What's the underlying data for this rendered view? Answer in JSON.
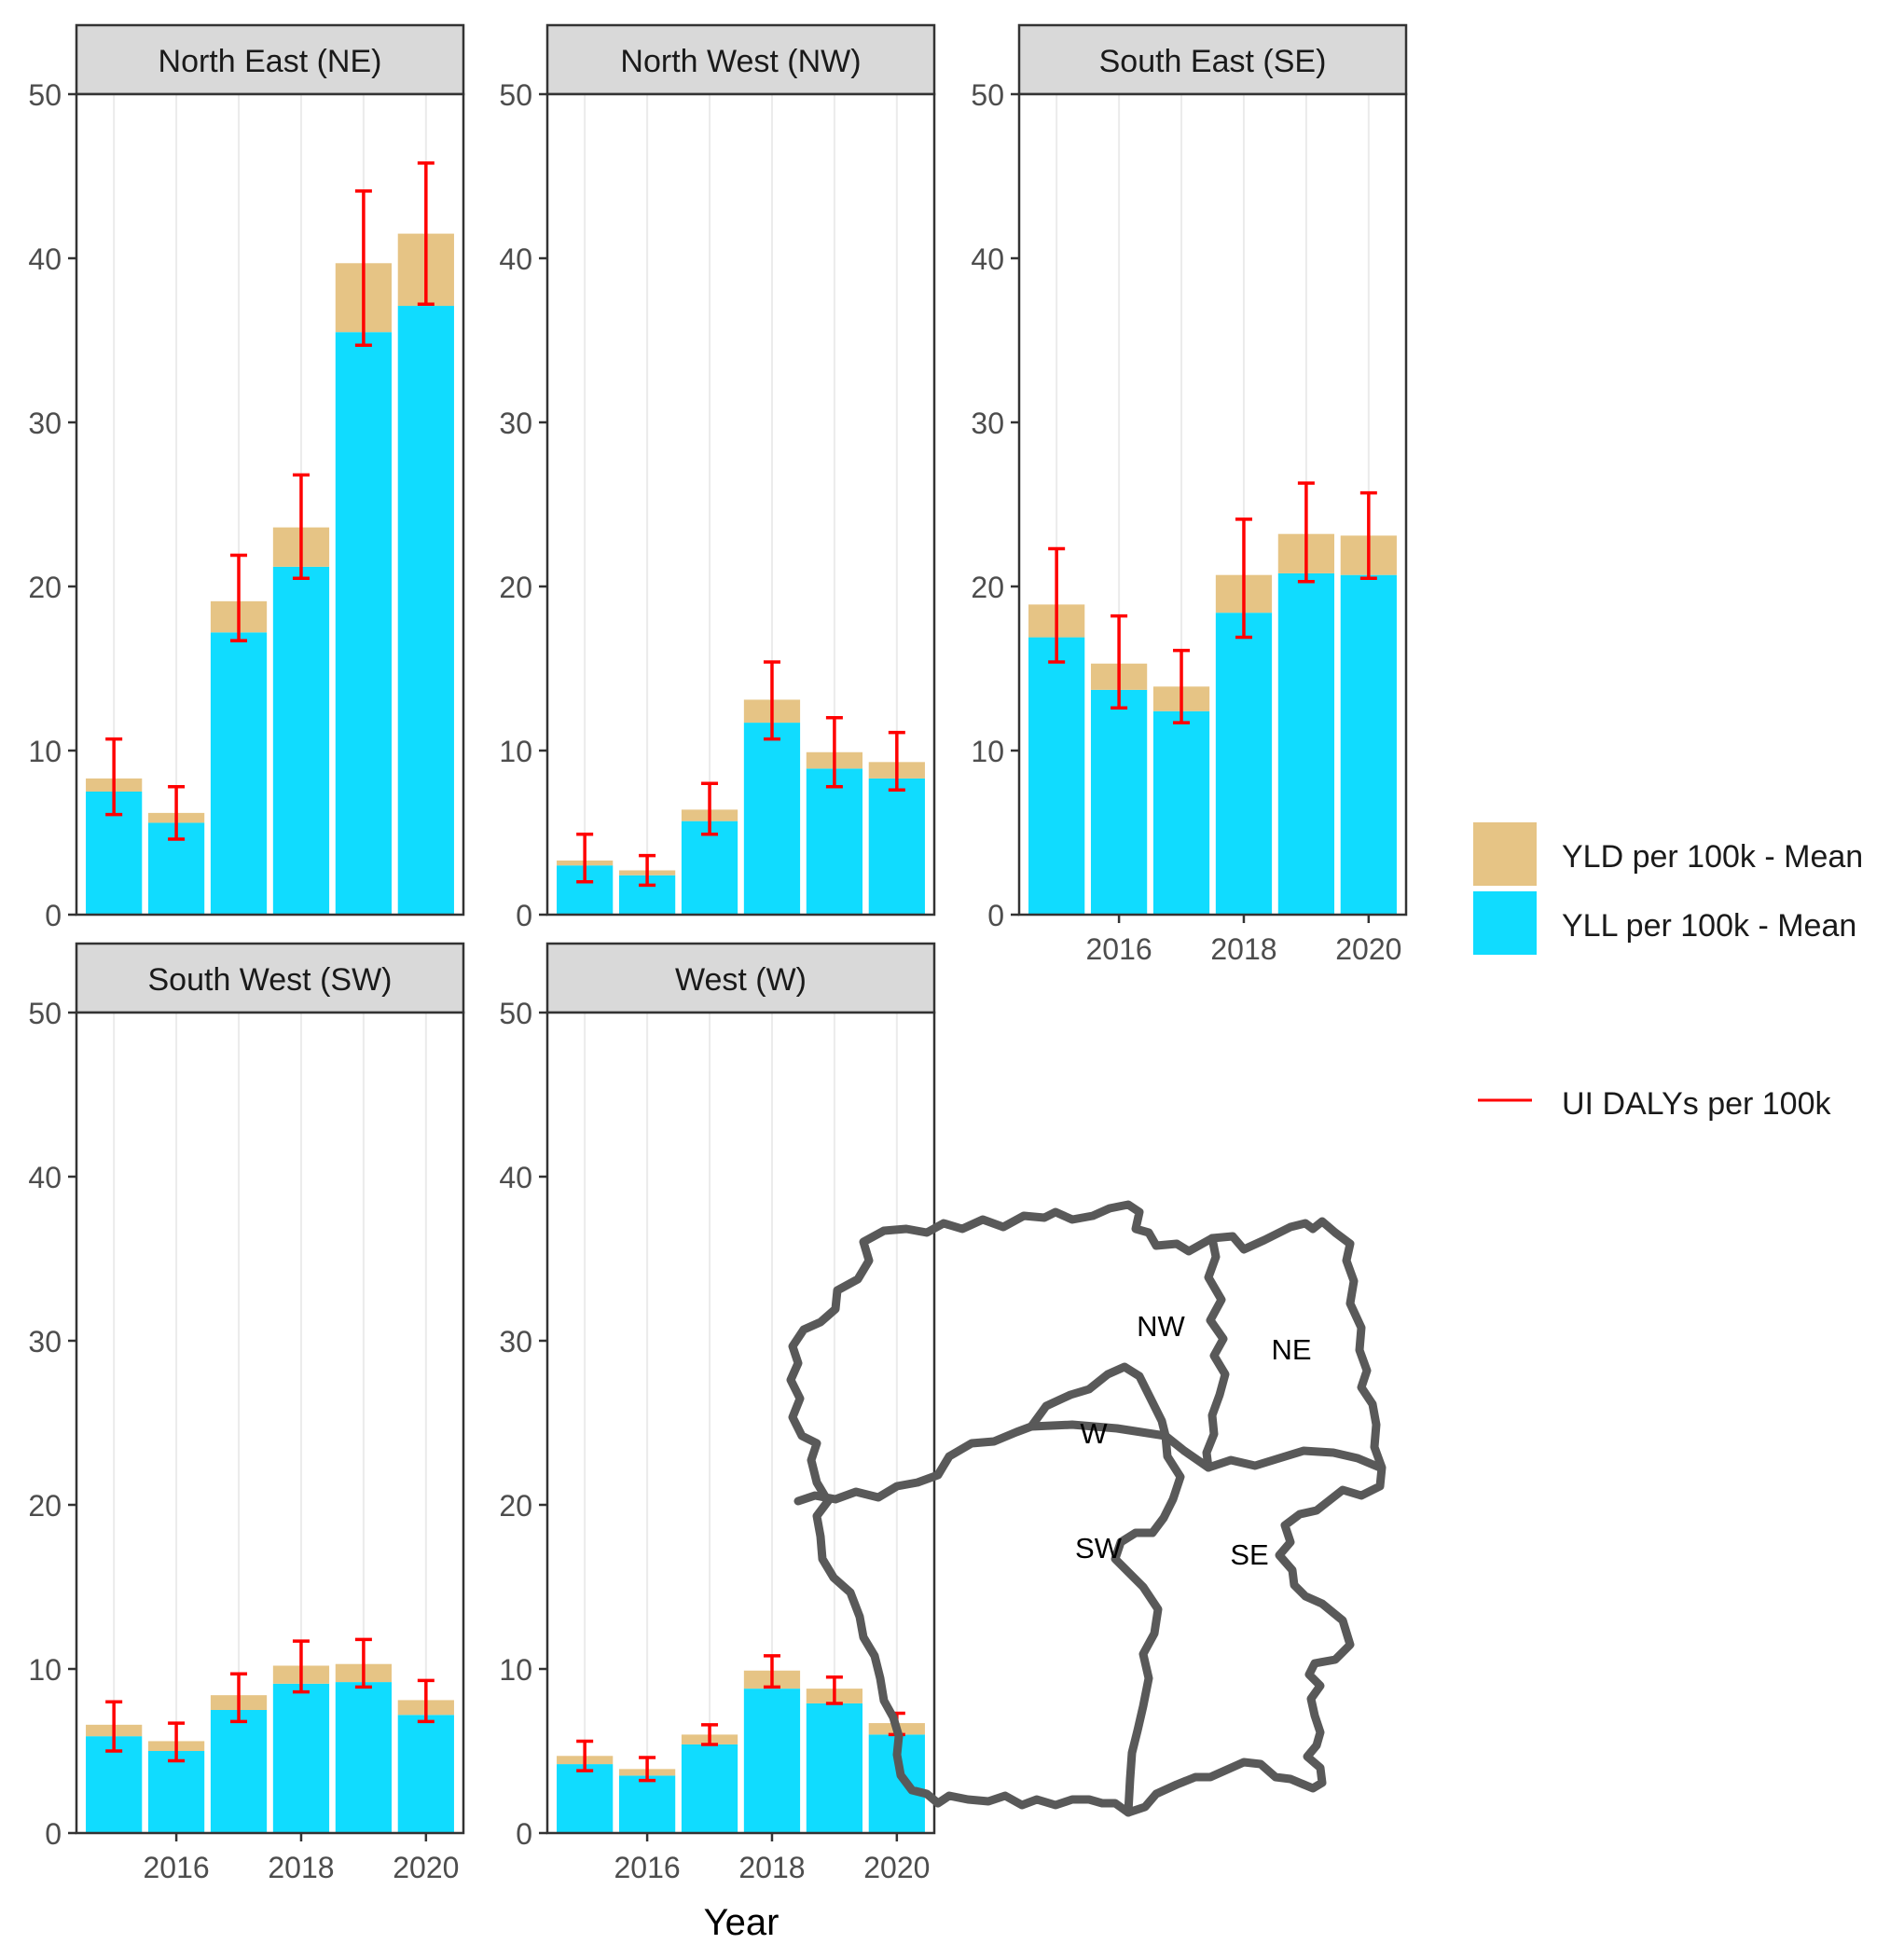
{
  "chart_data": {
    "type": "bar",
    "stacked": true,
    "xlabel": "Year",
    "ylabel": "",
    "ylim": [
      0,
      50
    ],
    "yticks": [
      0,
      10,
      20,
      30,
      40,
      50
    ],
    "xticks": [
      2016,
      2018,
      2020
    ],
    "categories": [
      2015,
      2016,
      2017,
      2018,
      2019,
      2020
    ],
    "grid": true,
    "colors": {
      "yll": "#10DCFF",
      "yld": "#E6C485",
      "ui": "#FF0000",
      "strip": "#D9D9D9",
      "grid": "#EBEBEB",
      "map": "#595959"
    },
    "legend": {
      "items": [
        {
          "key": "yld",
          "label": "YLD per 100k - Mean"
        },
        {
          "key": "yll",
          "label": "YLL per 100k - Mean"
        }
      ],
      "line_label": "UI DALYs per 100k"
    },
    "panels": [
      {
        "title": "North East (NE)",
        "yll": [
          7.5,
          5.6,
          17.2,
          21.2,
          35.5,
          37.1
        ],
        "yld": [
          0.8,
          0.6,
          1.9,
          2.4,
          4.2,
          4.4
        ],
        "ui_low": [
          6.1,
          4.6,
          16.7,
          20.5,
          34.7,
          37.2
        ],
        "ui_high": [
          10.7,
          7.8,
          21.9,
          26.8,
          44.1,
          45.8
        ]
      },
      {
        "title": "North West (NW)",
        "yll": [
          3.0,
          2.4,
          5.7,
          11.7,
          8.9,
          8.3
        ],
        "yld": [
          0.3,
          0.3,
          0.7,
          1.4,
          1.0,
          1.0
        ],
        "ui_low": [
          2.0,
          1.8,
          4.9,
          10.7,
          7.8,
          7.6
        ],
        "ui_high": [
          4.9,
          3.6,
          8.0,
          15.4,
          12.0,
          11.1
        ]
      },
      {
        "title": "South East (SE)",
        "yll": [
          16.9,
          13.7,
          12.4,
          18.4,
          20.8,
          20.7
        ],
        "yld": [
          2.0,
          1.6,
          1.5,
          2.3,
          2.4,
          2.4
        ],
        "ui_low": [
          15.4,
          12.6,
          11.7,
          16.9,
          20.3,
          20.5
        ],
        "ui_high": [
          22.3,
          18.2,
          16.1,
          24.1,
          26.3,
          25.7
        ]
      },
      {
        "title": "South West (SW)",
        "yll": [
          5.9,
          5.0,
          7.5,
          9.1,
          9.2,
          7.2
        ],
        "yld": [
          0.7,
          0.6,
          0.9,
          1.1,
          1.1,
          0.9
        ],
        "ui_low": [
          5.0,
          4.4,
          6.8,
          8.6,
          8.9,
          6.8
        ],
        "ui_high": [
          8.0,
          6.7,
          9.7,
          11.7,
          11.8,
          9.3
        ]
      },
      {
        "title": "West (W)",
        "yll": [
          4.2,
          3.5,
          5.4,
          8.8,
          7.9,
          6.0
        ],
        "yld": [
          0.5,
          0.4,
          0.6,
          1.1,
          0.9,
          0.7
        ],
        "ui_low": [
          3.8,
          3.2,
          5.4,
          8.9,
          7.9,
          6.0
        ],
        "ui_high": [
          5.6,
          4.6,
          6.6,
          10.8,
          9.5,
          7.3
        ]
      }
    ]
  },
  "map": {
    "labels": [
      "NW",
      "NE",
      "W",
      "SW",
      "SE"
    ]
  }
}
